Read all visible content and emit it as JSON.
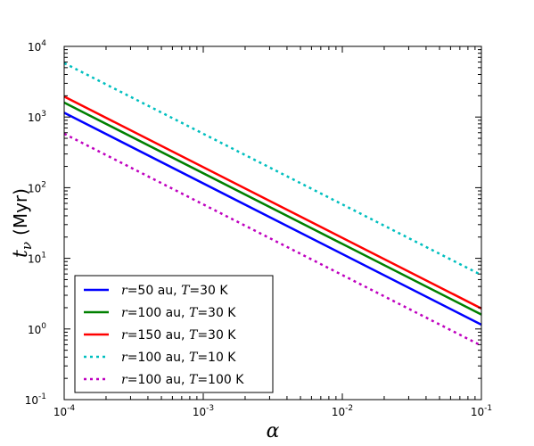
{
  "chart_data": {
    "type": "line",
    "xscale": "log",
    "yscale": "log",
    "xlim": [
      0.0001,
      0.1
    ],
    "ylim": [
      0.1,
      10000
    ],
    "xlabel": "α",
    "ylabel": {
      "symbol": "t",
      "subscript": "ν",
      "unit": "(Myr)"
    },
    "x_ticks": [
      {
        "base": "10",
        "exp": "-4"
      },
      {
        "base": "10",
        "exp": "-3"
      },
      {
        "base": "10",
        "exp": "-2"
      },
      {
        "base": "10",
        "exp": "-1"
      }
    ],
    "y_ticks": [
      {
        "base": "10",
        "exp": "-1"
      },
      {
        "base": "10",
        "exp": "0"
      },
      {
        "base": "10",
        "exp": "1"
      },
      {
        "base": "10",
        "exp": "2"
      },
      {
        "base": "10",
        "exp": "3"
      },
      {
        "base": "10",
        "exp": "4"
      }
    ],
    "grid": false,
    "legend_position": "lower-left",
    "series": [
      {
        "label_parts": {
          "r_var": "r",
          "r_val": "50",
          "r_unit": " au, ",
          "t_var": "T",
          "t_val": "30",
          "t_unit": " K"
        },
        "color": "#0000ff",
        "style": "solid",
        "x": [
          0.0001,
          0.1
        ],
        "y": [
          1150,
          1.15
        ]
      },
      {
        "label_parts": {
          "r_var": "r",
          "r_val": "100",
          "r_unit": " au, ",
          "t_var": "T",
          "t_val": "30",
          "t_unit": " K"
        },
        "color": "#008000",
        "style": "solid",
        "x": [
          0.0001,
          0.1
        ],
        "y": [
          1600,
          1.6
        ]
      },
      {
        "label_parts": {
          "r_var": "r",
          "r_val": "150",
          "r_unit": " au, ",
          "t_var": "T",
          "t_val": "30",
          "t_unit": " K"
        },
        "color": "#ff0000",
        "style": "solid",
        "x": [
          0.0001,
          0.1
        ],
        "y": [
          1950,
          1.95
        ]
      },
      {
        "label_parts": {
          "r_var": "r",
          "r_val": "100",
          "r_unit": " au, ",
          "t_var": "T",
          "t_val": "10",
          "t_unit": " K"
        },
        "color": "#00bfbf",
        "style": "dotted",
        "x": [
          0.0001,
          0.1
        ],
        "y": [
          5800,
          5.8
        ]
      },
      {
        "label_parts": {
          "r_var": "r",
          "r_val": "100",
          "r_unit": " au, ",
          "t_var": "T",
          "t_val": "100",
          "t_unit": " K"
        },
        "color": "#bf00bf",
        "style": "dotted",
        "x": [
          0.0001,
          0.1
        ],
        "y": [
          580,
          0.58
        ]
      }
    ]
  }
}
